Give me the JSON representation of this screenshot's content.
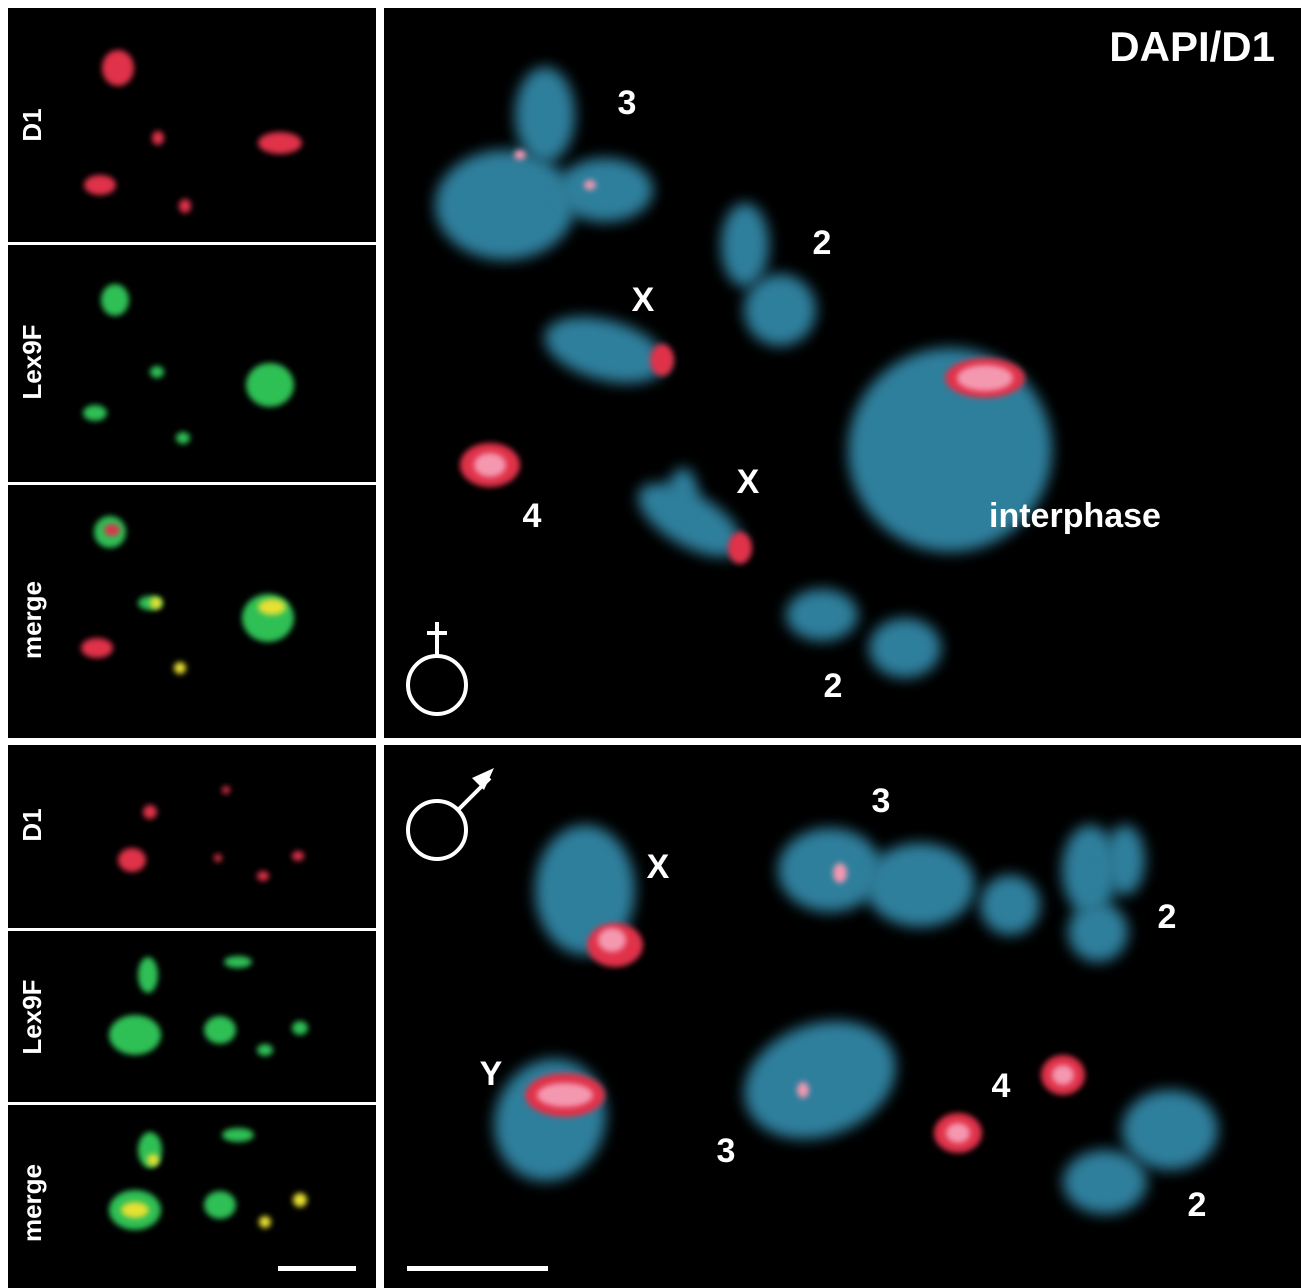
{
  "top": {
    "side_panels": [
      {
        "label": "D1"
      },
      {
        "label": "Lex9F"
      },
      {
        "label": "merge"
      }
    ],
    "main_panel": {
      "title": "DAPI/D1",
      "labels": [
        "3",
        "2",
        "X",
        "X",
        "4",
        "interphase",
        "2"
      ]
    }
  },
  "bottom": {
    "side_panels": [
      {
        "label": "D1"
      },
      {
        "label": "Lex9F"
      },
      {
        "label": "merge"
      }
    ],
    "main_panel": {
      "labels": [
        "3",
        "X",
        "2",
        "Y",
        "3",
        "4",
        "2"
      ]
    }
  }
}
